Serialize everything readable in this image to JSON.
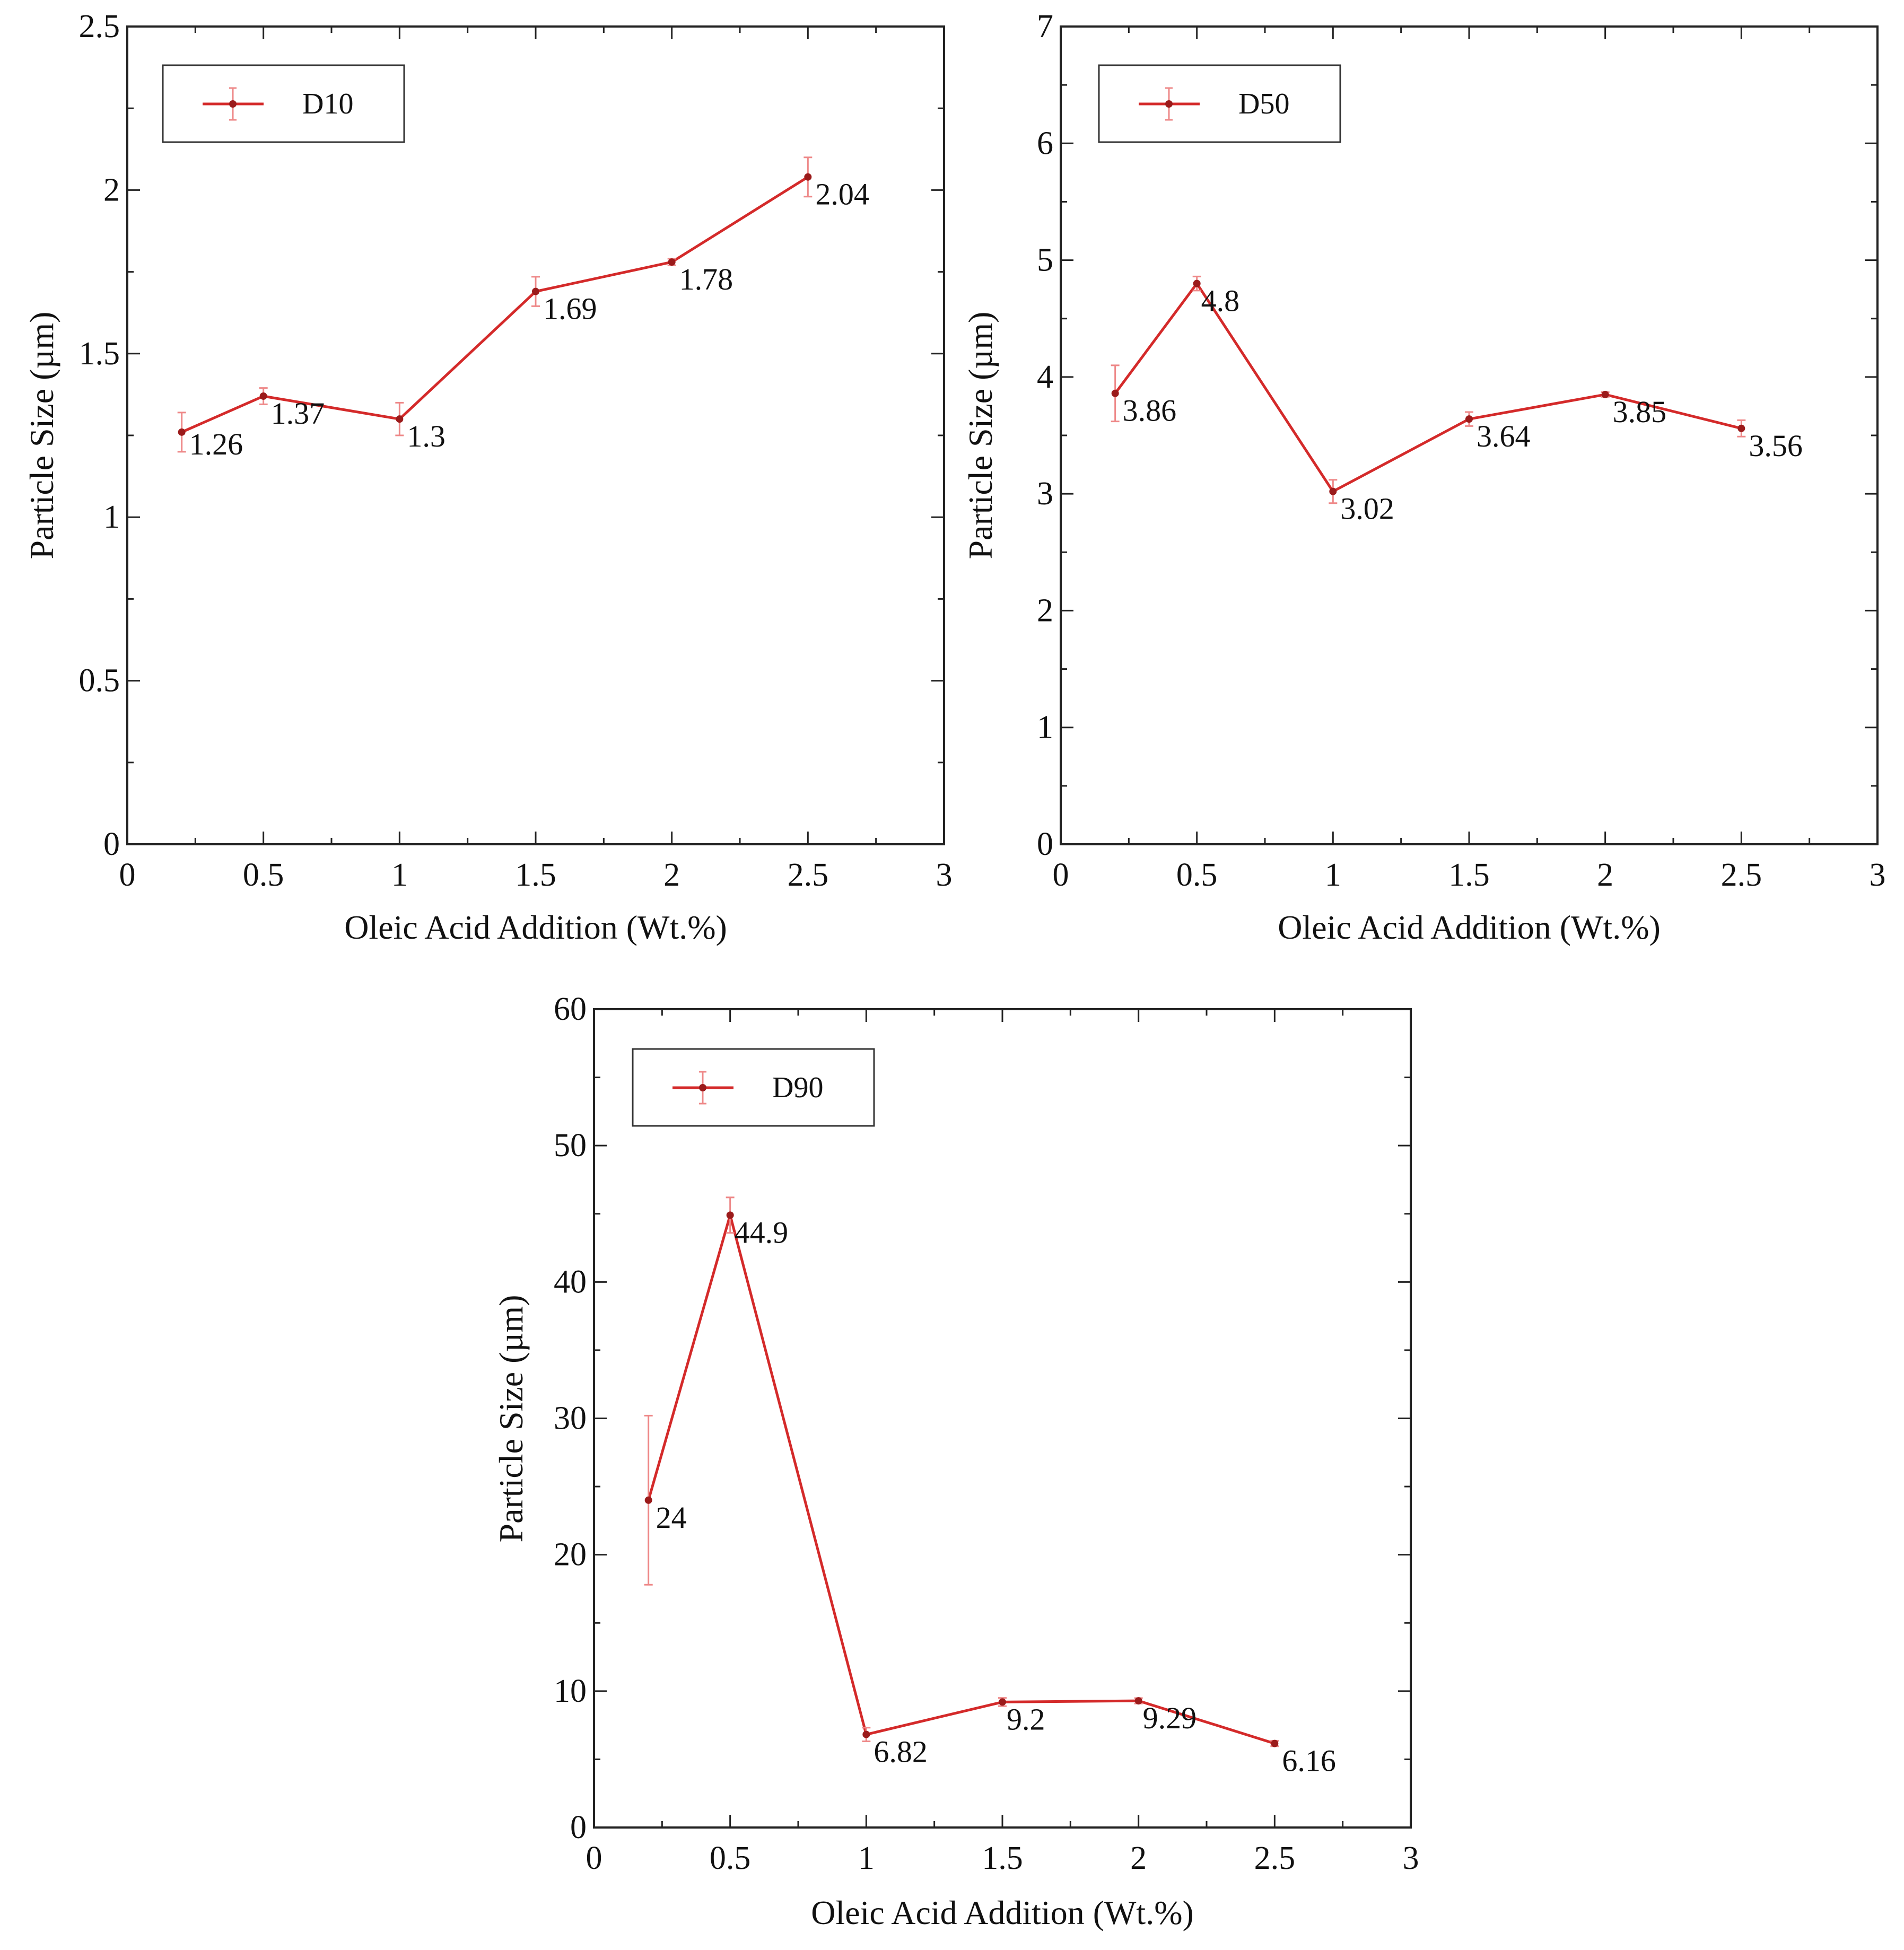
{
  "chart_data": [
    {
      "type": "line",
      "id": "d10",
      "title": "",
      "xlabel": "Oleic Acid Addition (Wt.%)",
      "ylabel": "Particle Size (µm)",
      "xlim": [
        0,
        3
      ],
      "ylim": [
        0,
        2.5
      ],
      "xticks": [
        0,
        0.5,
        1,
        1.5,
        2,
        2.5,
        3
      ],
      "xtick_labels": [
        "0",
        "0.5",
        "1",
        "1.5",
        "2",
        "2.5",
        "3"
      ],
      "yticks": [
        0,
        0.5,
        1,
        1.5,
        2,
        2.5
      ],
      "ytick_labels": [
        "0",
        "0.5",
        "1",
        "1.5",
        "2",
        "2.5"
      ],
      "legend": "D10",
      "legend_position": "top-left",
      "grid": false,
      "series": [
        {
          "name": "D10",
          "color": "#d42a2a",
          "x": [
            0.2,
            0.5,
            1,
            1.5,
            2,
            2.5
          ],
          "y": [
            1.26,
            1.37,
            1.3,
            1.69,
            1.78,
            2.04
          ],
          "error": [
            0.06,
            0.025,
            0.05,
            0.045,
            0.01,
            0.06
          ],
          "labels": [
            "1.26",
            "1.37",
            "1.3",
            "1.69",
            "1.78",
            "2.04"
          ]
        }
      ]
    },
    {
      "type": "line",
      "id": "d50",
      "title": "",
      "xlabel": "Oleic Acid Addition (Wt.%)",
      "ylabel": "Particle Size (µm)",
      "xlim": [
        0,
        3
      ],
      "ylim": [
        0,
        7
      ],
      "xticks": [
        0,
        0.5,
        1,
        1.5,
        2,
        2.5,
        3
      ],
      "xtick_labels": [
        "0",
        "0.5",
        "1",
        "1.5",
        "2",
        "2.5",
        "3"
      ],
      "yticks": [
        0,
        1,
        2,
        3,
        4,
        5,
        6,
        7
      ],
      "ytick_labels": [
        "0",
        "1",
        "2",
        "3",
        "4",
        "5",
        "6",
        "7"
      ],
      "legend": "D50",
      "legend_position": "top-left",
      "grid": false,
      "series": [
        {
          "name": "D50",
          "color": "#d42a2a",
          "x": [
            0.2,
            0.5,
            1,
            1.5,
            2,
            2.5
          ],
          "y": [
            3.86,
            4.8,
            3.02,
            3.64,
            3.85,
            3.56
          ],
          "error": [
            0.24,
            0.06,
            0.1,
            0.06,
            0.02,
            0.07
          ],
          "labels": [
            "3.86",
            "4.8",
            "3.02",
            "3.64",
            "3.85",
            "3.56"
          ]
        }
      ]
    },
    {
      "type": "line",
      "id": "d90",
      "title": "",
      "xlabel": "Oleic Acid Addition (Wt.%)",
      "ylabel": "Particle Size (µm)",
      "xlim": [
        0,
        3
      ],
      "ylim": [
        0,
        60
      ],
      "xticks": [
        0,
        0.5,
        1,
        1.5,
        2,
        2.5,
        3
      ],
      "xtick_labels": [
        "0",
        "0.5",
        "1",
        "1.5",
        "2",
        "2.5",
        "3"
      ],
      "yticks": [
        0,
        10,
        20,
        30,
        40,
        50,
        60
      ],
      "ytick_labels": [
        "0",
        "10",
        "20",
        "30",
        "40",
        "50",
        "60"
      ],
      "legend": "D90",
      "legend_position": "top-left",
      "grid": false,
      "series": [
        {
          "name": "D90",
          "color": "#d42a2a",
          "x": [
            0.2,
            0.5,
            1,
            1.5,
            2,
            2.5
          ],
          "y": [
            24,
            44.9,
            6.82,
            9.2,
            9.29,
            6.16
          ],
          "error": [
            6.2,
            1.3,
            0.5,
            0.3,
            0.2,
            0.2
          ],
          "labels": [
            "24",
            "44.9",
            "6.82",
            "9.2",
            "9.29",
            "6.16"
          ]
        }
      ]
    }
  ]
}
